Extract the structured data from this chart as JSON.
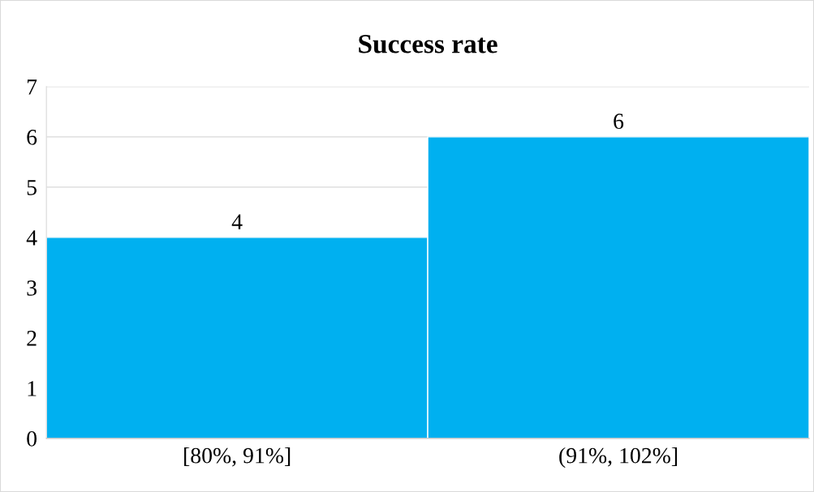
{
  "chart_data": {
    "type": "bar",
    "title": "Success rate",
    "categories": [
      "[80%, 91%]",
      "(91%, 102%]"
    ],
    "values": [
      4,
      6
    ],
    "color": "#00b0f0",
    "ylim": [
      0,
      7
    ],
    "yticks": [
      0,
      1,
      2,
      3,
      4,
      5,
      6,
      7
    ],
    "grid": "y",
    "data_labels": true
  }
}
